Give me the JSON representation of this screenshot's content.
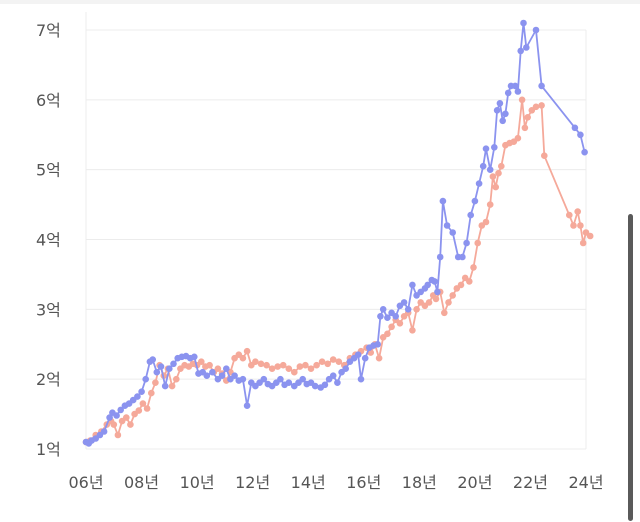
{
  "chart_data": {
    "type": "line",
    "title": "",
    "xlabel": "",
    "ylabel": "",
    "x_ticks": [
      "06년",
      "08년",
      "10년",
      "12년",
      "14년",
      "16년",
      "18년",
      "20년",
      "22년",
      "24년"
    ],
    "y_ticks": [
      "1억",
      "2억",
      "3억",
      "4억",
      "5억",
      "6억",
      "7억"
    ],
    "xlim": [
      2006,
      2024
    ],
    "ylim": [
      1,
      7
    ],
    "grid": "horizontal",
    "series": [
      {
        "color": "#8b93ef",
        "points": [
          [
            2006.0,
            1.1
          ],
          [
            2006.1,
            1.08
          ],
          [
            2006.2,
            1.12
          ],
          [
            2006.35,
            1.15
          ],
          [
            2006.5,
            1.2
          ],
          [
            2006.65,
            1.25
          ],
          [
            2006.85,
            1.45
          ],
          [
            2006.95,
            1.52
          ],
          [
            2007.1,
            1.48
          ],
          [
            2007.25,
            1.56
          ],
          [
            2007.4,
            1.62
          ],
          [
            2007.55,
            1.65
          ],
          [
            2007.7,
            1.7
          ],
          [
            2007.85,
            1.75
          ],
          [
            2008.0,
            1.82
          ],
          [
            2008.15,
            2.0
          ],
          [
            2008.3,
            2.25
          ],
          [
            2008.4,
            2.28
          ],
          [
            2008.55,
            2.1
          ],
          [
            2008.7,
            2.18
          ],
          [
            2008.85,
            1.9
          ],
          [
            2009.0,
            2.15
          ],
          [
            2009.15,
            2.22
          ],
          [
            2009.3,
            2.3
          ],
          [
            2009.45,
            2.32
          ],
          [
            2009.6,
            2.33
          ],
          [
            2009.75,
            2.3
          ],
          [
            2009.9,
            2.32
          ],
          [
            2010.05,
            2.08
          ],
          [
            2010.2,
            2.1
          ],
          [
            2010.35,
            2.05
          ],
          [
            2010.55,
            2.1
          ],
          [
            2010.75,
            2.0
          ],
          [
            2010.9,
            2.05
          ],
          [
            2011.05,
            2.15
          ],
          [
            2011.2,
            2.0
          ],
          [
            2011.35,
            2.05
          ],
          [
            2011.5,
            1.98
          ],
          [
            2011.65,
            2.0
          ],
          [
            2011.8,
            1.62
          ],
          [
            2011.95,
            1.95
          ],
          [
            2012.1,
            1.9
          ],
          [
            2012.25,
            1.95
          ],
          [
            2012.4,
            2.0
          ],
          [
            2012.55,
            1.93
          ],
          [
            2012.7,
            1.9
          ],
          [
            2012.85,
            1.95
          ],
          [
            2013.0,
            2.0
          ],
          [
            2013.15,
            1.92
          ],
          [
            2013.3,
            1.95
          ],
          [
            2013.5,
            1.9
          ],
          [
            2013.65,
            1.95
          ],
          [
            2013.8,
            2.0
          ],
          [
            2013.95,
            1.93
          ],
          [
            2014.1,
            1.95
          ],
          [
            2014.25,
            1.9
          ],
          [
            2014.45,
            1.88
          ],
          [
            2014.6,
            1.92
          ],
          [
            2014.75,
            2.0
          ],
          [
            2014.9,
            2.05
          ],
          [
            2015.05,
            1.95
          ],
          [
            2015.2,
            2.1
          ],
          [
            2015.35,
            2.15
          ],
          [
            2015.5,
            2.25
          ],
          [
            2015.65,
            2.3
          ],
          [
            2015.8,
            2.35
          ],
          [
            2015.9,
            2.0
          ],
          [
            2016.05,
            2.3
          ],
          [
            2016.2,
            2.45
          ],
          [
            2016.35,
            2.48
          ],
          [
            2016.5,
            2.5
          ],
          [
            2016.6,
            2.9
          ],
          [
            2016.7,
            3.0
          ],
          [
            2016.85,
            2.88
          ],
          [
            2017.0,
            2.95
          ],
          [
            2017.15,
            2.9
          ],
          [
            2017.3,
            3.05
          ],
          [
            2017.45,
            3.1
          ],
          [
            2017.6,
            3.0
          ],
          [
            2017.75,
            3.35
          ],
          [
            2017.9,
            3.2
          ],
          [
            2018.05,
            3.25
          ],
          [
            2018.2,
            3.3
          ],
          [
            2018.3,
            3.35
          ],
          [
            2018.45,
            3.42
          ],
          [
            2018.55,
            3.4
          ],
          [
            2018.65,
            3.25
          ],
          [
            2018.75,
            3.75
          ],
          [
            2018.85,
            4.55
          ],
          [
            2019.0,
            4.2
          ],
          [
            2019.2,
            4.1
          ],
          [
            2019.4,
            3.75
          ],
          [
            2019.55,
            3.75
          ],
          [
            2019.7,
            3.95
          ],
          [
            2019.85,
            4.35
          ],
          [
            2020.0,
            4.55
          ],
          [
            2020.15,
            4.8
          ],
          [
            2020.3,
            5.05
          ],
          [
            2020.4,
            5.3
          ],
          [
            2020.55,
            5.0
          ],
          [
            2020.7,
            5.32
          ],
          [
            2020.8,
            5.85
          ],
          [
            2020.9,
            5.95
          ],
          [
            2021.0,
            5.7
          ],
          [
            2021.1,
            5.8
          ],
          [
            2021.2,
            6.1
          ],
          [
            2021.3,
            6.2
          ],
          [
            2021.45,
            6.2
          ],
          [
            2021.55,
            6.12
          ],
          [
            2021.65,
            6.7
          ],
          [
            2021.75,
            7.1
          ],
          [
            2021.85,
            6.75
          ],
          [
            2022.2,
            7.0
          ],
          [
            2022.4,
            6.2
          ],
          [
            2023.6,
            5.6
          ],
          [
            2023.8,
            5.5
          ],
          [
            2023.95,
            5.25
          ]
        ]
      },
      {
        "color": "#f5a99a",
        "points": [
          [
            2006.0,
            1.1
          ],
          [
            2006.15,
            1.12
          ],
          [
            2006.35,
            1.2
          ],
          [
            2006.55,
            1.25
          ],
          [
            2006.75,
            1.35
          ],
          [
            2006.9,
            1.4
          ],
          [
            2007.0,
            1.35
          ],
          [
            2007.15,
            1.2
          ],
          [
            2007.3,
            1.4
          ],
          [
            2007.45,
            1.45
          ],
          [
            2007.6,
            1.35
          ],
          [
            2007.75,
            1.5
          ],
          [
            2007.9,
            1.55
          ],
          [
            2008.05,
            1.65
          ],
          [
            2008.2,
            1.58
          ],
          [
            2008.35,
            1.8
          ],
          [
            2008.5,
            1.95
          ],
          [
            2008.65,
            2.2
          ],
          [
            2008.8,
            2.05
          ],
          [
            2008.95,
            2.15
          ],
          [
            2009.1,
            1.9
          ],
          [
            2009.25,
            2.0
          ],
          [
            2009.4,
            2.15
          ],
          [
            2009.55,
            2.2
          ],
          [
            2009.7,
            2.18
          ],
          [
            2009.85,
            2.22
          ],
          [
            2010.0,
            2.2
          ],
          [
            2010.15,
            2.25
          ],
          [
            2010.3,
            2.18
          ],
          [
            2010.45,
            2.2
          ],
          [
            2010.6,
            2.1
          ],
          [
            2010.75,
            2.15
          ],
          [
            2010.9,
            2.08
          ],
          [
            2011.05,
            1.98
          ],
          [
            2011.2,
            2.1
          ],
          [
            2011.35,
            2.3
          ],
          [
            2011.5,
            2.35
          ],
          [
            2011.65,
            2.3
          ],
          [
            2011.8,
            2.4
          ],
          [
            2011.95,
            2.2
          ],
          [
            2012.1,
            2.25
          ],
          [
            2012.3,
            2.22
          ],
          [
            2012.5,
            2.2
          ],
          [
            2012.7,
            2.15
          ],
          [
            2012.9,
            2.18
          ],
          [
            2013.1,
            2.2
          ],
          [
            2013.3,
            2.15
          ],
          [
            2013.5,
            2.1
          ],
          [
            2013.7,
            2.18
          ],
          [
            2013.9,
            2.2
          ],
          [
            2014.1,
            2.15
          ],
          [
            2014.3,
            2.2
          ],
          [
            2014.5,
            2.25
          ],
          [
            2014.7,
            2.22
          ],
          [
            2014.9,
            2.28
          ],
          [
            2015.1,
            2.25
          ],
          [
            2015.3,
            2.2
          ],
          [
            2015.5,
            2.3
          ],
          [
            2015.7,
            2.35
          ],
          [
            2015.9,
            2.4
          ],
          [
            2016.1,
            2.45
          ],
          [
            2016.25,
            2.38
          ],
          [
            2016.4,
            2.5
          ],
          [
            2016.55,
            2.3
          ],
          [
            2016.7,
            2.6
          ],
          [
            2016.85,
            2.65
          ],
          [
            2017.0,
            2.75
          ],
          [
            2017.15,
            2.85
          ],
          [
            2017.3,
            2.8
          ],
          [
            2017.45,
            2.9
          ],
          [
            2017.6,
            2.95
          ],
          [
            2017.75,
            2.7
          ],
          [
            2017.9,
            3.0
          ],
          [
            2018.05,
            3.1
          ],
          [
            2018.2,
            3.05
          ],
          [
            2018.35,
            3.1
          ],
          [
            2018.5,
            3.2
          ],
          [
            2018.6,
            3.15
          ],
          [
            2018.75,
            3.25
          ],
          [
            2018.9,
            2.95
          ],
          [
            2019.05,
            3.1
          ],
          [
            2019.2,
            3.2
          ],
          [
            2019.35,
            3.3
          ],
          [
            2019.5,
            3.35
          ],
          [
            2019.65,
            3.45
          ],
          [
            2019.8,
            3.4
          ],
          [
            2019.95,
            3.6
          ],
          [
            2020.1,
            3.95
          ],
          [
            2020.25,
            4.2
          ],
          [
            2020.4,
            4.25
          ],
          [
            2020.55,
            4.5
          ],
          [
            2020.65,
            4.9
          ],
          [
            2020.75,
            4.75
          ],
          [
            2020.85,
            4.95
          ],
          [
            2020.95,
            5.05
          ],
          [
            2021.1,
            5.35
          ],
          [
            2021.25,
            5.38
          ],
          [
            2021.4,
            5.4
          ],
          [
            2021.55,
            5.45
          ],
          [
            2021.7,
            6.0
          ],
          [
            2021.8,
            5.6
          ],
          [
            2021.9,
            5.75
          ],
          [
            2022.05,
            5.85
          ],
          [
            2022.2,
            5.9
          ],
          [
            2022.4,
            5.92
          ],
          [
            2022.5,
            5.2
          ],
          [
            2023.4,
            4.35
          ],
          [
            2023.55,
            4.2
          ],
          [
            2023.7,
            4.4
          ],
          [
            2023.8,
            4.2
          ],
          [
            2023.9,
            3.95
          ],
          [
            2024.0,
            4.1
          ],
          [
            2024.15,
            4.05
          ]
        ]
      }
    ]
  }
}
